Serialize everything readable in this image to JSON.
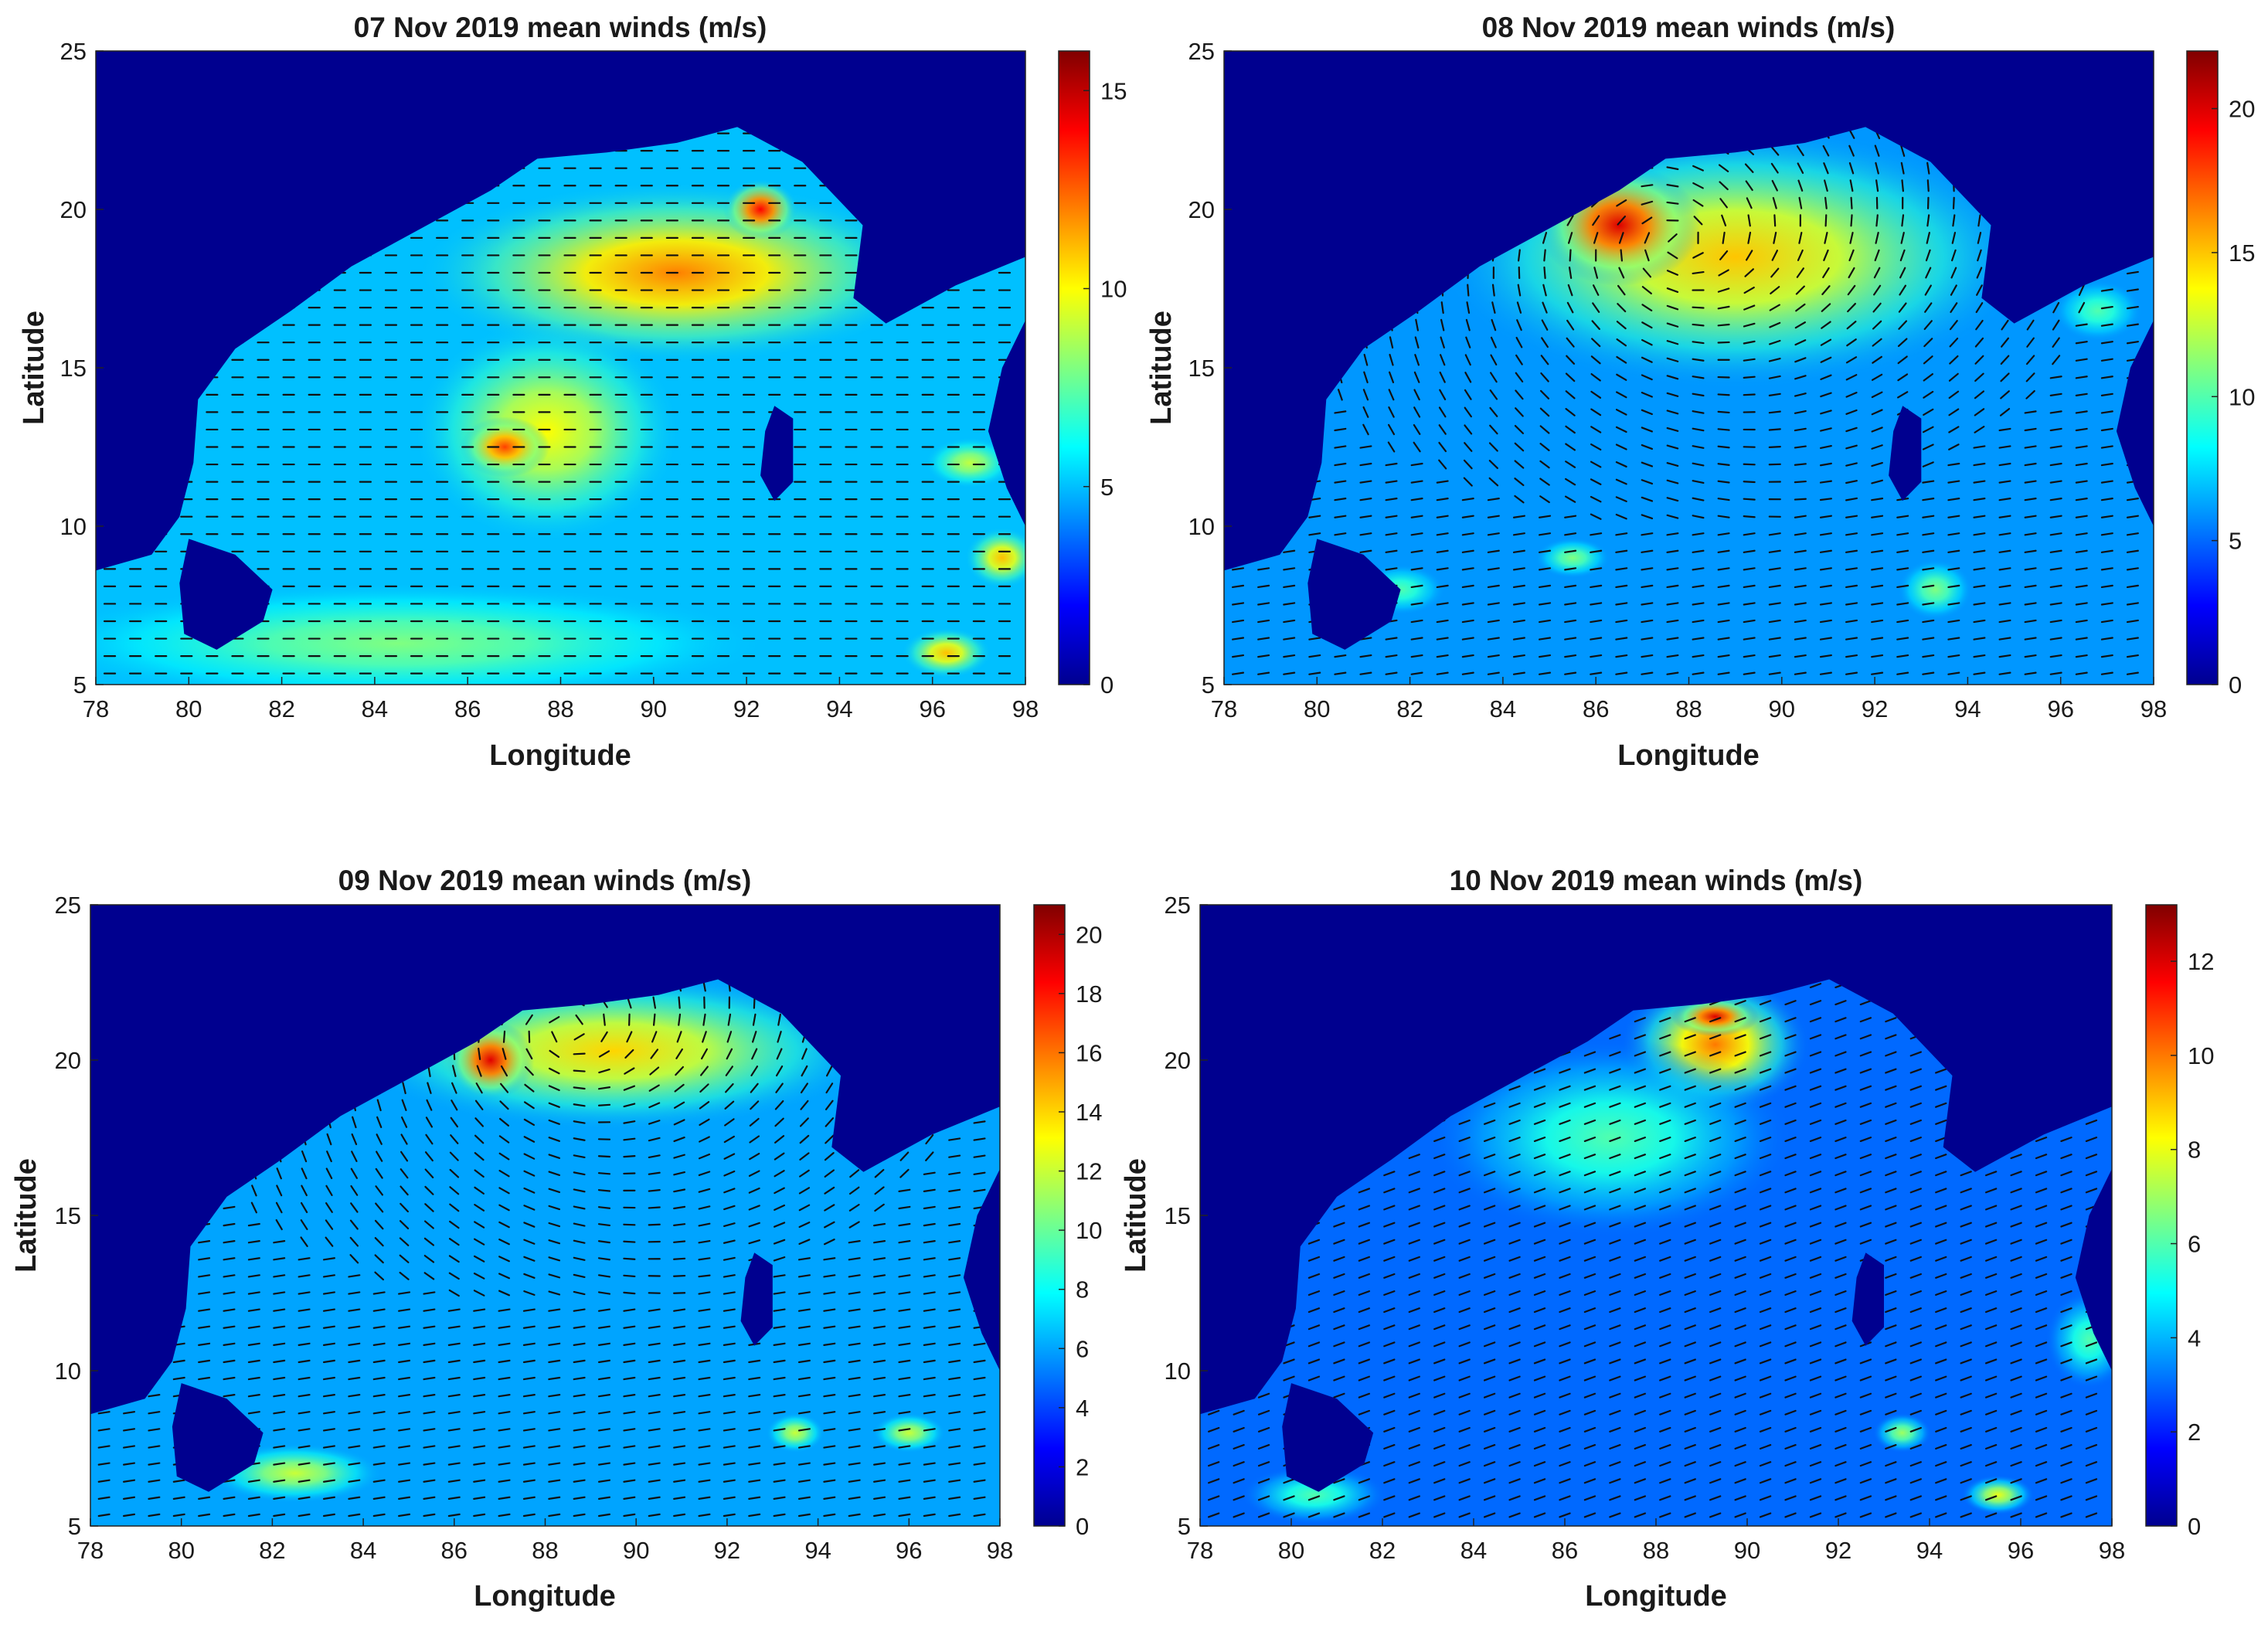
{
  "colormap": [
    "#00008f",
    "#0000ff",
    "#0080ff",
    "#00ffff",
    "#80ff80",
    "#ffff00",
    "#ff8000",
    "#ff0000",
    "#800000"
  ],
  "ocean_base_color": "#2f6fe6",
  "land_color": "#00008f",
  "chart_data": [
    {
      "type": "heatmap",
      "title": "07 Nov 2019 mean winds (m/s)",
      "xlabel": "Longitude",
      "ylabel": "Latitude",
      "xlim": [
        78,
        98
      ],
      "ylim": [
        5,
        25
      ],
      "xticks": [
        78,
        80,
        82,
        84,
        86,
        88,
        90,
        92,
        94,
        96,
        98
      ],
      "yticks": [
        5,
        10,
        15,
        20,
        25
      ],
      "clim": [
        0,
        16
      ],
      "cticks": [
        0,
        5,
        10,
        15
      ],
      "base_speed": 5,
      "wind_direction": "westward",
      "hotspots": [
        {
          "lon": 90.5,
          "lat": 18.0,
          "rx": 3.5,
          "ry": 1.8,
          "speed": 12
        },
        {
          "lon": 92.3,
          "lat": 20.0,
          "rx": 0.5,
          "ry": 0.6,
          "speed": 14
        },
        {
          "lon": 87.7,
          "lat": 13.0,
          "rx": 1.8,
          "ry": 2.2,
          "speed": 10
        },
        {
          "lon": 86.8,
          "lat": 12.5,
          "rx": 0.6,
          "ry": 0.6,
          "speed": 13
        },
        {
          "lon": 84.5,
          "lat": 6.3,
          "rx": 5.0,
          "ry": 1.2,
          "speed": 8
        },
        {
          "lon": 96.3,
          "lat": 6.0,
          "rx": 0.6,
          "ry": 0.5,
          "speed": 11
        },
        {
          "lon": 97.5,
          "lat": 9.0,
          "rx": 0.5,
          "ry": 0.6,
          "speed": 11
        },
        {
          "lon": 96.8,
          "lat": 12.0,
          "rx": 0.6,
          "ry": 0.5,
          "speed": 9
        }
      ]
    },
    {
      "type": "heatmap",
      "title": "08 Nov 2019 mean winds (m/s)",
      "xlabel": "Longitude",
      "ylabel": "Latitude",
      "xlim": [
        78,
        98
      ],
      "ylim": [
        5,
        25
      ],
      "xticks": [
        78,
        80,
        82,
        84,
        86,
        88,
        90,
        92,
        94,
        96,
        98
      ],
      "yticks": [
        5,
        10,
        15,
        20,
        25
      ],
      "clim": [
        0,
        22
      ],
      "cticks": [
        0,
        5,
        10,
        15,
        20
      ],
      "base_speed": 6,
      "wind_direction": "cyclonic",
      "cyclone_center": {
        "lon": 87.8,
        "lat": 19.0
      },
      "hotspots": [
        {
          "lon": 89.0,
          "lat": 18.5,
          "rx": 4.0,
          "ry": 2.6,
          "speed": 15
        },
        {
          "lon": 86.5,
          "lat": 19.5,
          "rx": 1.1,
          "ry": 1.2,
          "speed": 20
        },
        {
          "lon": 81.8,
          "lat": 8.0,
          "rx": 0.6,
          "ry": 0.5,
          "speed": 10
        },
        {
          "lon": 85.5,
          "lat": 9.0,
          "rx": 0.5,
          "ry": 0.4,
          "speed": 11
        },
        {
          "lon": 93.3,
          "lat": 8.0,
          "rx": 0.5,
          "ry": 0.6,
          "speed": 11
        },
        {
          "lon": 96.8,
          "lat": 16.8,
          "rx": 0.6,
          "ry": 0.6,
          "speed": 10
        }
      ]
    },
    {
      "type": "heatmap",
      "title": "09 Nov 2019 mean winds (m/s)",
      "xlabel": "Longitude",
      "ylabel": "Latitude",
      "xlim": [
        78,
        98
      ],
      "ylim": [
        5,
        25
      ],
      "xticks": [
        78,
        80,
        82,
        84,
        86,
        88,
        90,
        92,
        94,
        96,
        98
      ],
      "yticks": [
        5,
        10,
        15,
        20,
        25
      ],
      "clim": [
        0,
        21
      ],
      "cticks": [
        0,
        2,
        4,
        6,
        8,
        10,
        12,
        14,
        16,
        18,
        20
      ],
      "base_speed": 6,
      "wind_direction": "cyclonic",
      "cyclone_center": {
        "lon": 88.5,
        "lat": 21.0
      },
      "hotspots": [
        {
          "lon": 89.5,
          "lat": 20.3,
          "rx": 3.6,
          "ry": 1.6,
          "speed": 14
        },
        {
          "lon": 86.8,
          "lat": 20.0,
          "rx": 0.6,
          "ry": 0.8,
          "speed": 19
        },
        {
          "lon": 82.5,
          "lat": 6.7,
          "rx": 1.2,
          "ry": 0.6,
          "speed": 12
        },
        {
          "lon": 93.5,
          "lat": 8.0,
          "rx": 0.4,
          "ry": 0.4,
          "speed": 12
        },
        {
          "lon": 96.0,
          "lat": 8.0,
          "rx": 0.5,
          "ry": 0.4,
          "speed": 12
        }
      ]
    },
    {
      "type": "heatmap",
      "title": "10 Nov 2019 mean winds (m/s)",
      "xlabel": "Longitude",
      "ylabel": "Latitude",
      "xlim": [
        78,
        98
      ],
      "ylim": [
        5,
        25
      ],
      "xticks": [
        78,
        80,
        82,
        84,
        86,
        88,
        90,
        92,
        94,
        96,
        98
      ],
      "yticks": [
        5,
        10,
        15,
        20,
        25
      ],
      "clim": [
        0,
        13.2
      ],
      "cticks": [
        0,
        2,
        4,
        6,
        8,
        10,
        12
      ],
      "base_speed": 3,
      "wind_direction": "southwestward",
      "hotspots": [
        {
          "lon": 89.3,
          "lat": 20.5,
          "rx": 1.3,
          "ry": 1.4,
          "speed": 10
        },
        {
          "lon": 89.3,
          "lat": 21.4,
          "rx": 0.6,
          "ry": 0.4,
          "speed": 12
        },
        {
          "lon": 87.0,
          "lat": 17.5,
          "rx": 2.5,
          "ry": 2.0,
          "speed": 6
        },
        {
          "lon": 95.5,
          "lat": 6.0,
          "rx": 0.5,
          "ry": 0.4,
          "speed": 8
        },
        {
          "lon": 93.4,
          "lat": 8.0,
          "rx": 0.4,
          "ry": 0.4,
          "speed": 7
        },
        {
          "lon": 80.5,
          "lat": 6.0,
          "rx": 1.0,
          "ry": 0.6,
          "speed": 6
        },
        {
          "lon": 97.5,
          "lat": 11.0,
          "rx": 0.6,
          "ry": 1.0,
          "speed": 6
        }
      ]
    }
  ]
}
